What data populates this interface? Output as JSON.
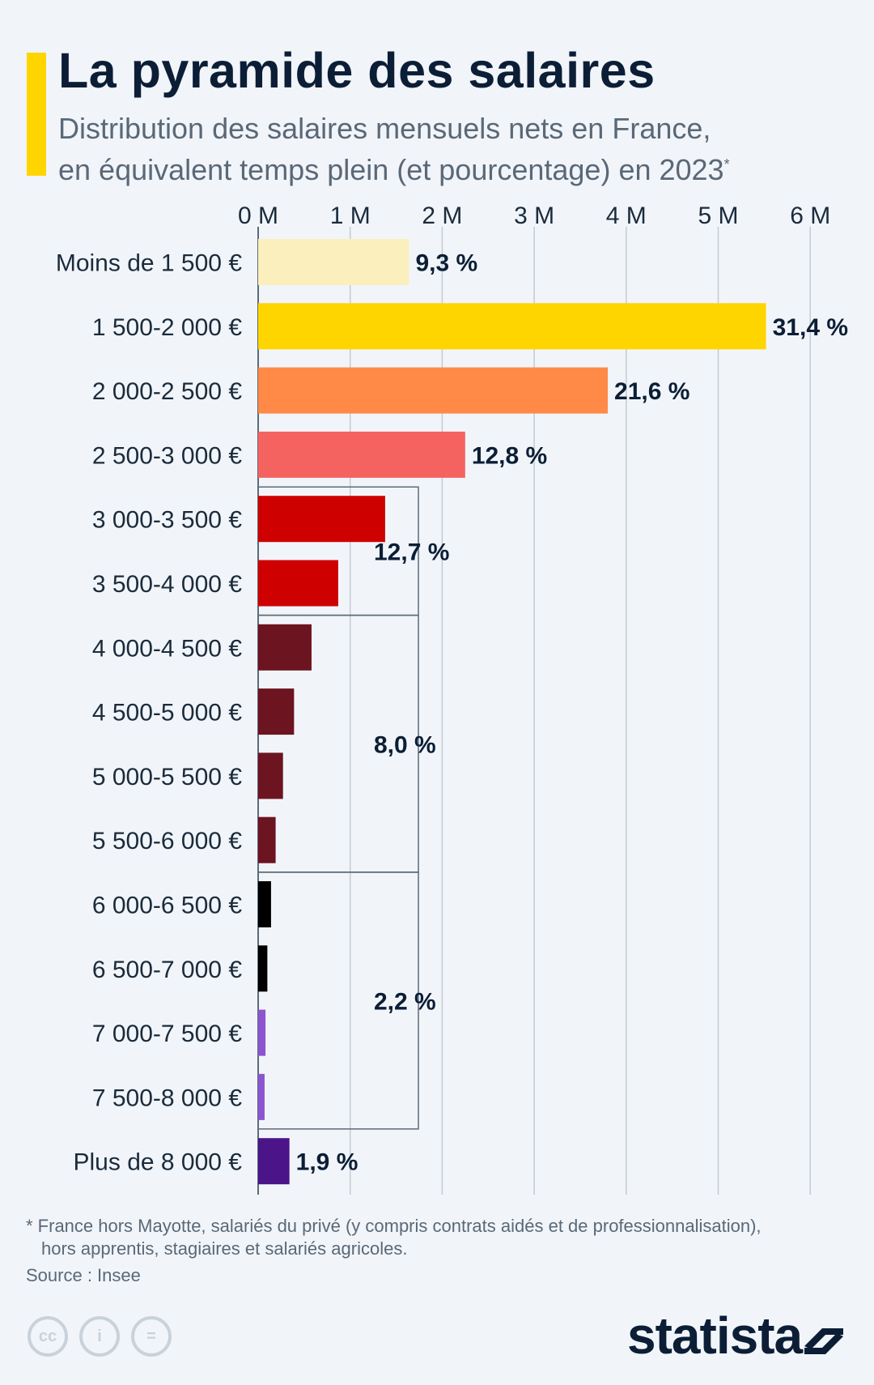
{
  "header": {
    "title": "La pyramide des salaires",
    "subtitle_line1": "Distribution des salaires mensuels nets en France,",
    "subtitle_line2": "en équivalent temps plein (et pourcentage) en 2023",
    "subtitle_marker": "*"
  },
  "chart_data": {
    "type": "bar",
    "orientation": "horizontal",
    "title": "La pyramide des salaires",
    "xlim": [
      0,
      6000000
    ],
    "x_ticks": [
      "0 M",
      "1 M",
      "2 M",
      "3 M",
      "4 M",
      "5 M",
      "6 M"
    ],
    "categories": [
      "Moins de 1 500 €",
      "1 500-2 000 €",
      "2 000-2 500 €",
      "2 500-3 000 €",
      "3 000-3 500 €",
      "3 500-4 000 €",
      "4 000-4 500 €",
      "4 500-5 000 €",
      "5 000-5 500 €",
      "5 500-6 000 €",
      "6 000-6 500 €",
      "6 500-7 000 €",
      "7 000-7 500 €",
      "7 500-8 000 €",
      "Plus de 8 000 €"
    ],
    "values": [
      1640000,
      5520000,
      3800000,
      2250000,
      1380000,
      870000,
      580000,
      390000,
      270000,
      190000,
      140000,
      100000,
      80000,
      70000,
      340000
    ],
    "colors": [
      "#fbefbd",
      "#ffd500",
      "#ff8a48",
      "#f46360",
      "#cf0000",
      "#cf0000",
      "#6c1420",
      "#6c1420",
      "#6c1420",
      "#6c1420",
      "#000000",
      "#000000",
      "#8c54d0",
      "#8c54d0",
      "#4b1489"
    ],
    "labels": [
      {
        "index": 0,
        "text": "9,3 %"
      },
      {
        "index": 1,
        "text": "31,4 %"
      },
      {
        "index": 2,
        "text": "21,6 %"
      },
      {
        "index": 3,
        "text": "12,8 %"
      },
      {
        "index": 14,
        "text": "1,9 %"
      }
    ],
    "groups": [
      {
        "from": 4,
        "to": 5,
        "text": "12,7 %"
      },
      {
        "from": 6,
        "to": 9,
        "text": "8,0 %"
      },
      {
        "from": 10,
        "to": 13,
        "text": "2,2 %"
      }
    ]
  },
  "footer": {
    "footnote_line1": "* France hors Mayotte, salariés du privé (y compris contrats aidés et de professionnalisation),",
    "footnote_line2": "hors apprentis, stagiaires et salariés agricoles.",
    "source": "Source : Insee",
    "brand": "statista",
    "cc_icons": [
      "cc-icon",
      "attribution-icon",
      "no-derivatives-icon"
    ],
    "cc_labels": [
      "cc",
      "i",
      "="
    ]
  }
}
